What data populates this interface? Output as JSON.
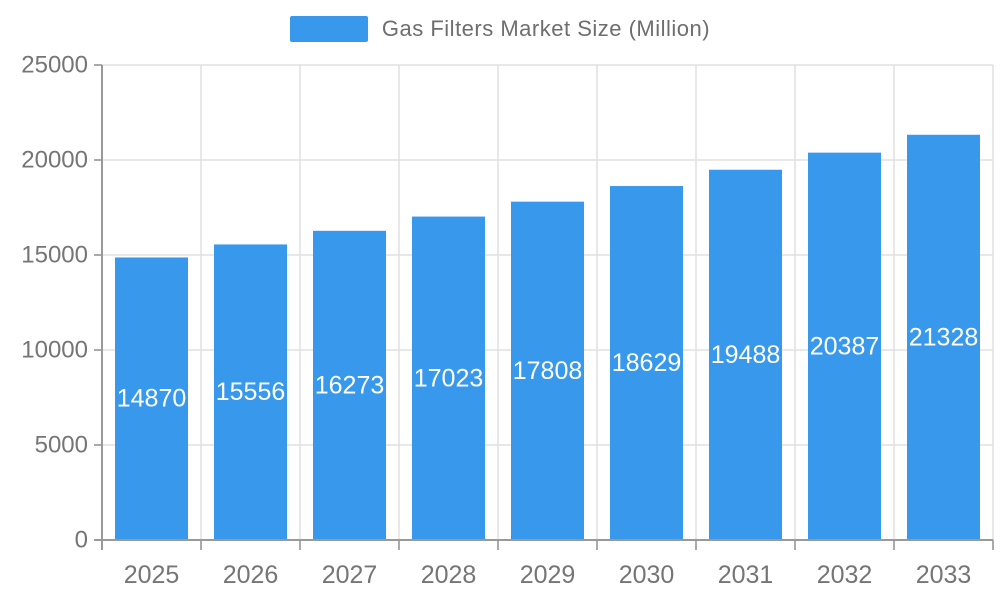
{
  "chart_data": {
    "type": "bar",
    "title": "Gas Filters Market Size (Million)",
    "categories": [
      "2025",
      "2026",
      "2027",
      "2028",
      "2029",
      "2030",
      "2031",
      "2032",
      "2033"
    ],
    "values": [
      14870,
      15556,
      16273,
      17023,
      17808,
      18629,
      19488,
      20387,
      21328
    ],
    "xlabel": "",
    "ylabel": "",
    "ylim": [
      0,
      25000
    ],
    "yticks": [
      0,
      5000,
      10000,
      15000,
      20000,
      25000
    ],
    "grid": true,
    "legend_position": "top-center",
    "bar_color": "#3899EC",
    "bar_label_color": "#ffffff",
    "grid_color": "#e0e0e0",
    "axis_color": "#999999",
    "tick_mark_color": "#aaaaaa",
    "tick_text_color": "#757575",
    "legend_text_color": "#6e6e6e",
    "background_color": "#ffffff"
  }
}
